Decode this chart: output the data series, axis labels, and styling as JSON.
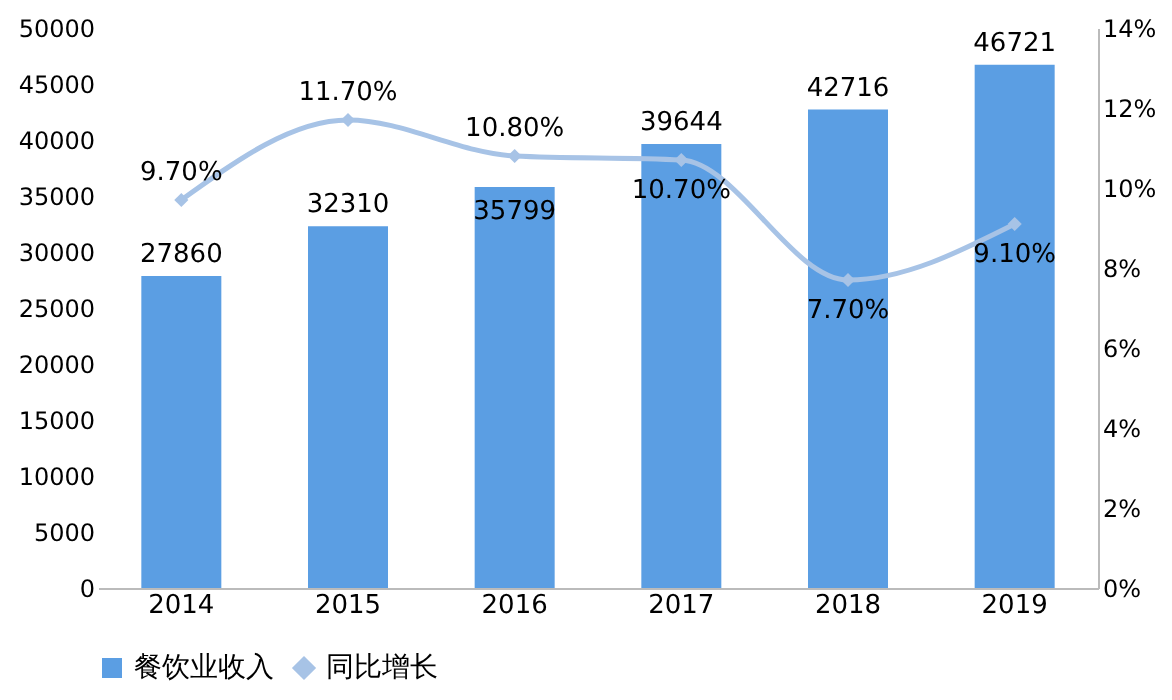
{
  "chart_data": {
    "type": "bar",
    "categories": [
      "2014",
      "2015",
      "2016",
      "2017",
      "2018",
      "2019"
    ],
    "series": [
      {
        "name": "餐饮业收入",
        "color": "#5b9ee3",
        "values": [
          27860,
          32310,
          35799,
          39644,
          42716,
          46721
        ],
        "value_labels": [
          "27860",
          "32310",
          "35799",
          "39644",
          "42716",
          "46721"
        ]
      },
      {
        "name": "同比增长",
        "type": "line",
        "axis": "y2",
        "color": "#a7c3e6",
        "marker": "diamond",
        "values": [
          9.7,
          11.7,
          10.8,
          10.7,
          7.7,
          9.1
        ],
        "value_labels": [
          "9.70%",
          "11.70%",
          "10.80%",
          "10.70%",
          "7.70%",
          "9.10%"
        ]
      }
    ],
    "ylim": [
      0,
      50000
    ],
    "yticks": [
      0,
      5000,
      10000,
      15000,
      20000,
      25000,
      30000,
      35000,
      40000,
      45000,
      50000
    ],
    "y2lim": [
      0,
      14
    ],
    "y2ticks": [
      {
        "value": 0,
        "label": "0%"
      },
      {
        "value": 2,
        "label": "2%"
      },
      {
        "value": 4,
        "label": "4%"
      },
      {
        "value": 6,
        "label": "6%"
      },
      {
        "value": 8,
        "label": "8%"
      },
      {
        "value": 10,
        "label": "10%"
      },
      {
        "value": 12,
        "label": "12%"
      },
      {
        "value": 14,
        "label": "14%"
      }
    ],
    "grid": false,
    "legend": "bottom"
  }
}
